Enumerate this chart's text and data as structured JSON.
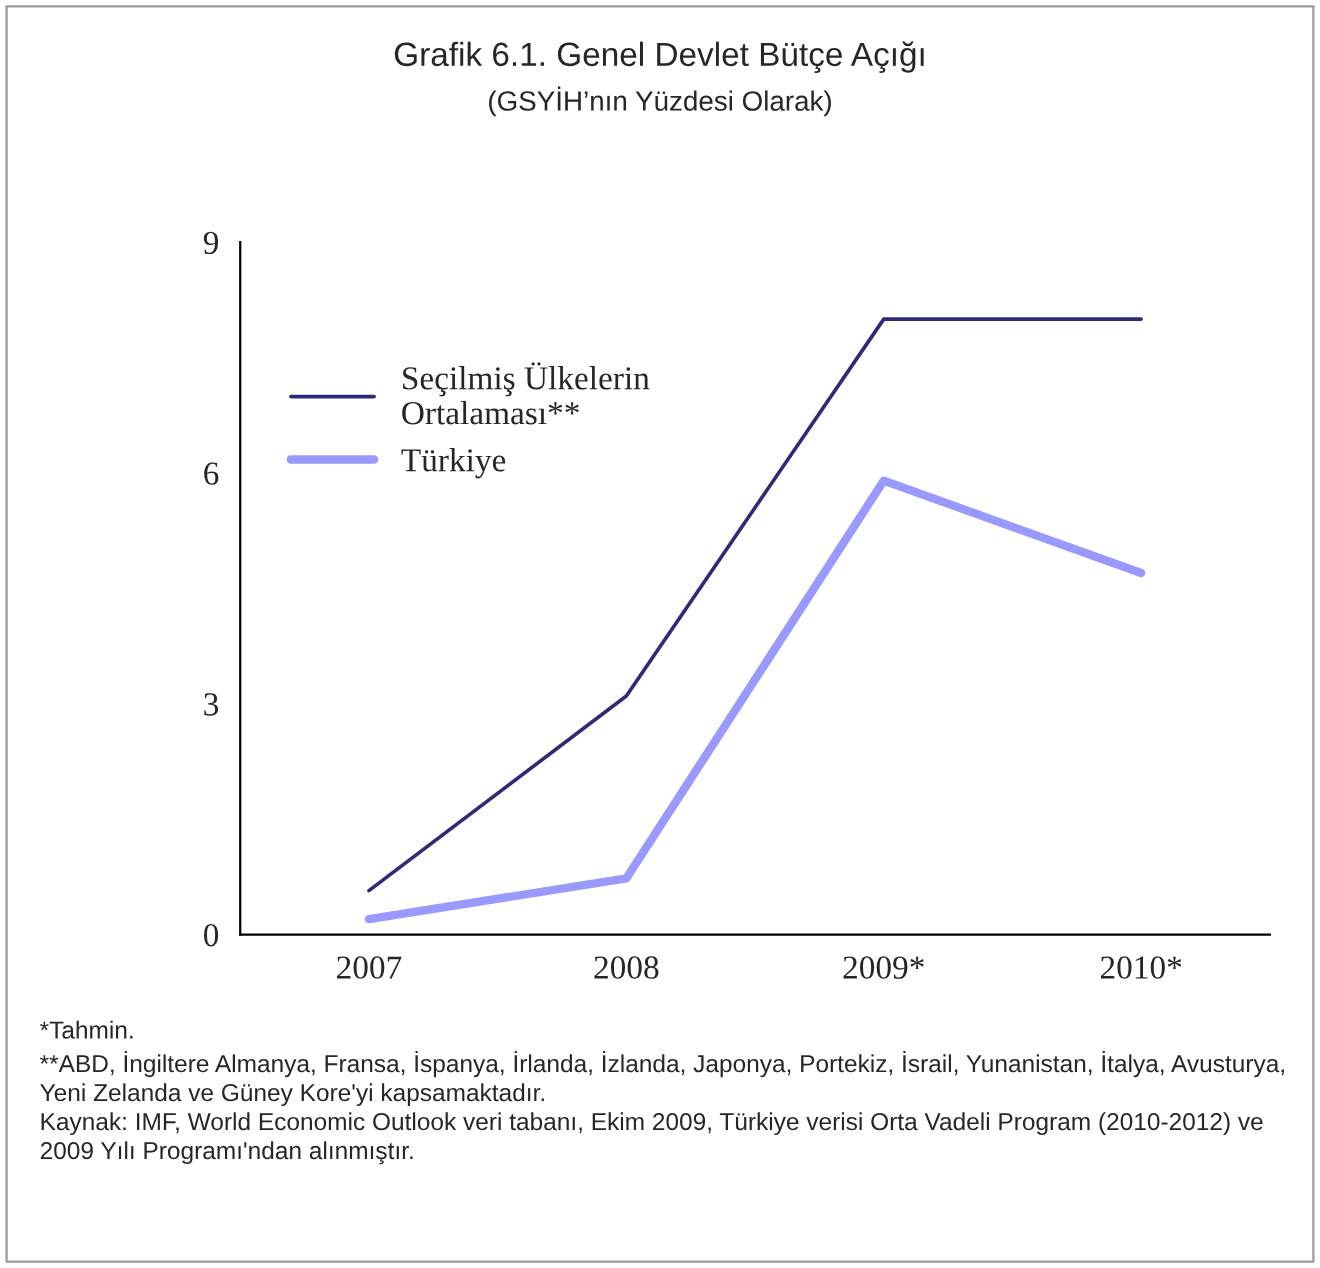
{
  "chart_data": {
    "type": "line",
    "title": "Grafik 6.1. Genel Devlet Bütçe Açığı",
    "subtitle": "(GSYİH’nın Yüzdesi Olarak)",
    "categories": [
      "2007",
      "2008",
      "2009*",
      "2010*"
    ],
    "series": [
      {
        "name": "Seçilmiş Ülkelerin Ortalaması**",
        "color": "#2e2a7a",
        "values": [
          0.57,
          3.1,
          8.0,
          8.0
        ]
      },
      {
        "name": "Türkiye",
        "color": "#9999ff",
        "values": [
          0.2,
          0.73,
          5.9,
          4.7
        ]
      }
    ],
    "ylim": [
      0,
      9
    ],
    "yticks": [
      0,
      3,
      6,
      9
    ],
    "grid": false,
    "legend": "top left",
    "marker": "none",
    "line_style": "solid",
    "annotations": [
      "*Tahmin.",
      "**ABD, İngiltere Almanya, Fransa, İspanya, İrlanda, İzlanda, Japonya, Portekiz, İsrail, Yunanistan, İtalya, Avusturya, Yeni Zelanda ve Güney Kore'yi kapsamaktadır.",
      "Kaynak: IMF, World Economic Outlook veri tabanı, Ekim 2009, Türkiye verisi Orta Vadeli Program (2010-2012) ve 2009 Yılı Programı'ndan alınmıştır."
    ]
  }
}
